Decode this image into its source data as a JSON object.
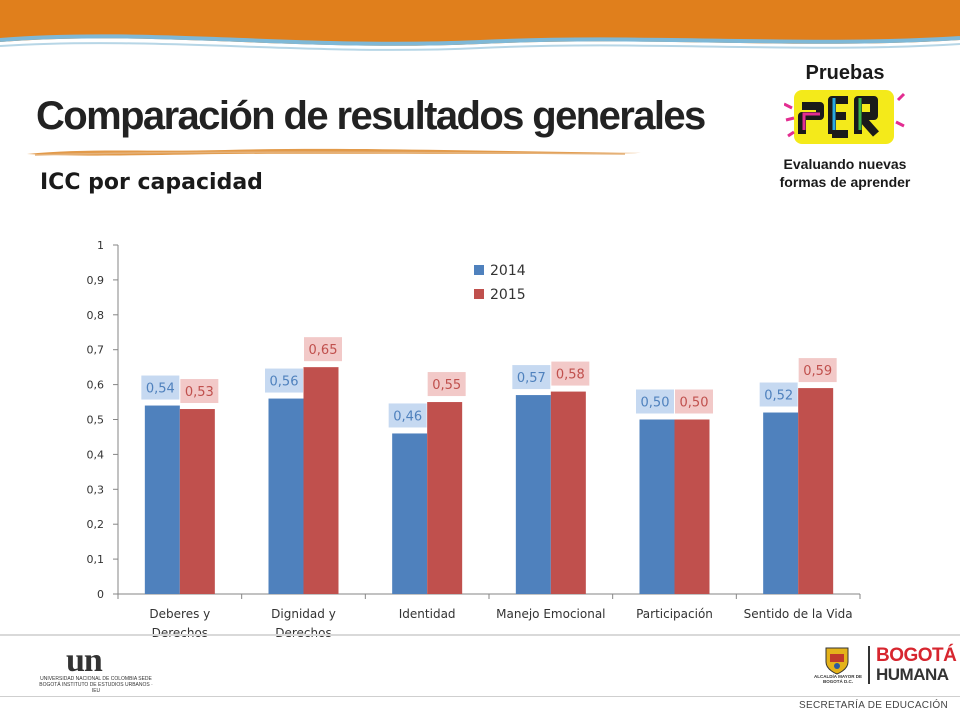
{
  "slide": {
    "title": "Comparación de resultados generales",
    "subtitle": "ICC por capacidad",
    "footer_right": "SECRETARÍA DE EDUCACIÓN"
  },
  "logos": {
    "pruebas_line1": "Pruebas",
    "pruebas_word": "SER",
    "pruebas_line2": "Evaluando nuevas",
    "pruebas_line3": "formas de aprender",
    "un_mark": "un",
    "un_text": "UNIVERSIDAD NACIONAL DE COLOMBIA SEDE BOGOTÁ INSTITUTO DE ESTUDIOS URBANOS · IEU",
    "alcaldia_text": "ALCALDÍA MAYOR DE BOGOTÁ D.C.",
    "bogota_word": "BOGOTÁ",
    "humana_word": "HUMANA"
  },
  "colors": {
    "top_band": "#e07f1c",
    "band_line": "#7fb8d6",
    "series_2014": "#4f81bd",
    "series_2015": "#c0504d",
    "label_bg_2014": "#c6d9f1",
    "label_bg_2015": "#f2c9c8"
  },
  "chart_data": {
    "type": "bar",
    "categories": [
      "Deberes y\nDerechos",
      "Dignidad y\nDerechos",
      "Identidad",
      "Manejo Emocional",
      "Participación",
      "Sentido de la Vida"
    ],
    "series": [
      {
        "name": "2014",
        "values": [
          0.54,
          0.56,
          0.46,
          0.57,
          0.5,
          0.52
        ],
        "labels": [
          "0,54",
          "0,56",
          "0,46",
          "0,57",
          "0,50",
          "0,52"
        ]
      },
      {
        "name": "2015",
        "values": [
          0.53,
          0.65,
          0.55,
          0.58,
          0.5,
          0.59
        ],
        "labels": [
          "0,53",
          "0,65",
          "0,55",
          "0,58",
          "0,50",
          "0,59"
        ]
      }
    ],
    "ylim": [
      0,
      1
    ],
    "yticks": [
      0,
      0.1,
      0.2,
      0.3,
      0.4,
      0.5,
      0.6,
      0.7,
      0.8,
      0.9,
      1
    ],
    "ytick_labels": [
      "0",
      "0,1",
      "0,2",
      "0,3",
      "0,4",
      "0,5",
      "0,6",
      "0,7",
      "0,8",
      "0,9",
      "1"
    ],
    "grid": false,
    "legend_position": "top-center",
    "title": "",
    "xlabel": "",
    "ylabel": ""
  }
}
